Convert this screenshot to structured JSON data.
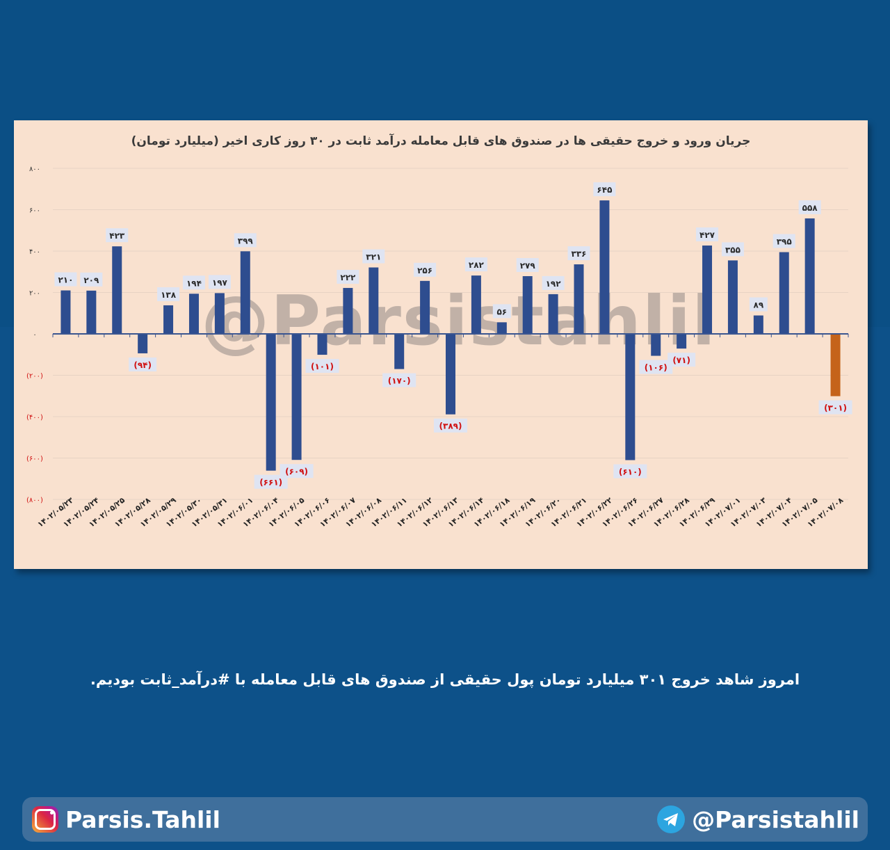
{
  "chart_data": {
    "type": "bar",
    "title": "جریان ورود و خروج حقیقی ها در صندوق های قابل معامله درآمد ثابت در ۳۰ روز کاری اخیر (میلیارد تومان)",
    "ylim": [
      -800,
      800
    ],
    "yticks": [
      800,
      600,
      400,
      200,
      0,
      -200,
      -400,
      -600,
      -800
    ],
    "ytick_labels": [
      "۸۰۰",
      "۶۰۰",
      "۴۰۰",
      "۲۰۰",
      "۰",
      "(۲۰۰)",
      "(۴۰۰)",
      "(۶۰۰)",
      "(۸۰۰)"
    ],
    "grid": true,
    "categories": [
      "۱۴۰۲/۰۵/۲۳",
      "۱۴۰۲/۰۵/۲۴",
      "۱۴۰۲/۰۵/۲۵",
      "۱۴۰۲/۰۵/۲۸",
      "۱۴۰۲/۰۵/۲۹",
      "۱۴۰۲/۰۵/۳۰",
      "۱۴۰۲/۰۵/۳۱",
      "۱۴۰۲/۰۶/۰۱",
      "۱۴۰۲/۰۶/۰۴",
      "۱۴۰۲/۰۶/۰۵",
      "۱۴۰۲/۰۶/۰۶",
      "۱۴۰۲/۰۶/۰۷",
      "۱۴۰۲/۰۶/۰۸",
      "۱۴۰۲/۰۶/۱۱",
      "۱۴۰۲/۰۶/۱۲",
      "۱۴۰۲/۰۶/۱۳",
      "۱۴۰۲/۰۶/۱۴",
      "۱۴۰۲/۰۶/۱۸",
      "۱۴۰۲/۰۶/۱۹",
      "۱۴۰۲/۰۶/۲۰",
      "۱۴۰۲/۰۶/۲۱",
      "۱۴۰۲/۰۶/۲۲",
      "۱۴۰۲/۰۶/۲۶",
      "۱۴۰۲/۰۶/۲۷",
      "۱۴۰۲/۰۶/۲۸",
      "۱۴۰۲/۰۶/۲۹",
      "۱۴۰۲/۰۷/۰۱",
      "۱۴۰۲/۰۷/۰۳",
      "۱۴۰۲/۰۷/۰۴",
      "۱۴۰۲/۰۷/۰۵",
      "۱۴۰۲/۰۷/۰۸"
    ],
    "values": [
      210,
      209,
      423,
      -94,
      138,
      194,
      197,
      399,
      -661,
      -609,
      -101,
      222,
      321,
      -170,
      256,
      -389,
      282,
      56,
      279,
      192,
      336,
      645,
      -610,
      -106,
      -71,
      427,
      355,
      89,
      395,
      558,
      -301
    ],
    "value_labels": [
      "۲۱۰",
      "۲۰۹",
      "۴۲۳",
      "(۹۴)",
      "۱۳۸",
      "۱۹۴",
      "۱۹۷",
      "۳۹۹",
      "(۶۶۱)",
      "(۶۰۹)",
      "(۱۰۱)",
      "۲۲۲",
      "۳۲۱",
      "(۱۷۰)",
      "۲۵۶",
      "(۳۸۹)",
      "۲۸۲",
      "۵۶",
      "۲۷۹",
      "۱۹۲",
      "۳۳۶",
      "۶۴۵",
      "(۶۱۰)",
      "(۱۰۶)",
      "(۷۱)",
      "۴۲۷",
      "۳۵۵",
      "۸۹",
      "۳۹۵",
      "۵۵۸",
      "(۳۰۱)"
    ],
    "colors": {
      "bar": "#2e4d8f",
      "last_bar": "#c5631a",
      "negative_label": "#d01010",
      "positive_label": "#2a2a2a",
      "label_box": "#dfe4f2",
      "grid": "#e7d3c4",
      "background": "#f9e1cf"
    }
  },
  "watermark": "@Parsistahlil",
  "caption": "امروز شاهد خروج ۳۰۱ میلیارد تومان پول حقیقی  از صندوق های قابل معامله با #درآمد_ثابت بودیم.",
  "footer": {
    "instagram_handle": "Parsis.Tahlil",
    "telegram_handle": "@Parsistahlil",
    "icons": [
      "instagram-icon",
      "telegram-icon"
    ]
  }
}
